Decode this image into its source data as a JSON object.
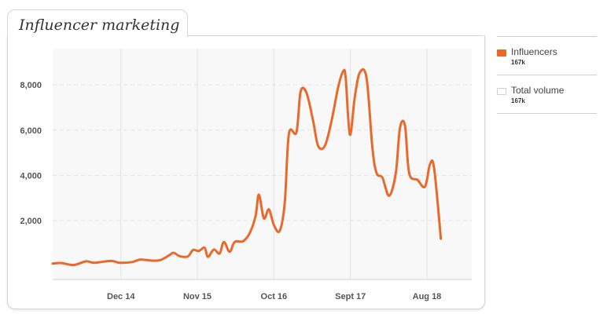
{
  "header": {
    "title": "Influencer marketing"
  },
  "colors": {
    "accent": "#e8692a",
    "grid": "#e3e3e3",
    "plot_bg": "#f8f8f8"
  },
  "legend": [
    {
      "label": "Influencers",
      "sub": "167k",
      "color": "#e8692a",
      "active": true
    },
    {
      "label": "Total volume",
      "sub": "167k",
      "color": "#ffffff",
      "active": false
    }
  ],
  "chart_data": {
    "type": "line",
    "title": "Influencer marketing",
    "xlabel": "",
    "ylabel": "",
    "ylim": [
      -600,
      9600
    ],
    "y_ticks": [
      2000,
      4000,
      6000,
      8000
    ],
    "y_tick_labels": [
      "2,000",
      "4,000",
      "6,000",
      "8,000"
    ],
    "x_ticks": [
      {
        "label": "Dec 14",
        "x": 2014.917
      },
      {
        "label": "Nov 15",
        "x": 2015.833
      },
      {
        "label": "Oct 16",
        "x": 2016.75
      },
      {
        "label": "Sept 17",
        "x": 2017.667
      },
      {
        "label": "Aug 18",
        "x": 2018.583
      }
    ],
    "xlim": [
      2014.1,
      2019.12
    ],
    "grid": true,
    "legend_position": "right",
    "series": [
      {
        "name": "Influencers",
        "points": [
          [
            2014.1,
            100
          ],
          [
            2014.2,
            130
          ],
          [
            2014.35,
            40
          ],
          [
            2014.5,
            200
          ],
          [
            2014.6,
            140
          ],
          [
            2014.8,
            220
          ],
          [
            2014.9,
            140
          ],
          [
            2015.05,
            170
          ],
          [
            2015.15,
            280
          ],
          [
            2015.3,
            230
          ],
          [
            2015.4,
            270
          ],
          [
            2015.5,
            480
          ],
          [
            2015.55,
            580
          ],
          [
            2015.62,
            430
          ],
          [
            2015.72,
            420
          ],
          [
            2015.78,
            700
          ],
          [
            2015.85,
            660
          ],
          [
            2015.92,
            800
          ],
          [
            2015.96,
            400
          ],
          [
            2016.03,
            720
          ],
          [
            2016.1,
            550
          ],
          [
            2016.15,
            1060
          ],
          [
            2016.22,
            620
          ],
          [
            2016.28,
            1060
          ],
          [
            2016.38,
            1090
          ],
          [
            2016.46,
            1450
          ],
          [
            2016.53,
            2200
          ],
          [
            2016.57,
            3150
          ],
          [
            2016.63,
            2100
          ],
          [
            2016.69,
            2500
          ],
          [
            2016.75,
            1800
          ],
          [
            2016.82,
            1550
          ],
          [
            2016.88,
            2800
          ],
          [
            2016.93,
            5850
          ],
          [
            2017.02,
            5900
          ],
          [
            2017.07,
            7700
          ],
          [
            2017.14,
            7650
          ],
          [
            2017.22,
            6400
          ],
          [
            2017.28,
            5300
          ],
          [
            2017.36,
            5300
          ],
          [
            2017.44,
            6400
          ],
          [
            2017.52,
            7900
          ],
          [
            2017.58,
            8600
          ],
          [
            2017.61,
            8300
          ],
          [
            2017.66,
            5800
          ],
          [
            2017.72,
            7500
          ],
          [
            2017.78,
            8550
          ],
          [
            2017.86,
            8300
          ],
          [
            2017.93,
            5200
          ],
          [
            2017.98,
            4100
          ],
          [
            2018.05,
            3900
          ],
          [
            2018.13,
            3100
          ],
          [
            2018.21,
            4100
          ],
          [
            2018.26,
            6100
          ],
          [
            2018.32,
            6200
          ],
          [
            2018.37,
            4100
          ],
          [
            2018.47,
            3800
          ],
          [
            2018.56,
            3500
          ],
          [
            2018.62,
            4500
          ],
          [
            2018.67,
            4300
          ],
          [
            2018.75,
            1200
          ]
        ]
      }
    ]
  }
}
